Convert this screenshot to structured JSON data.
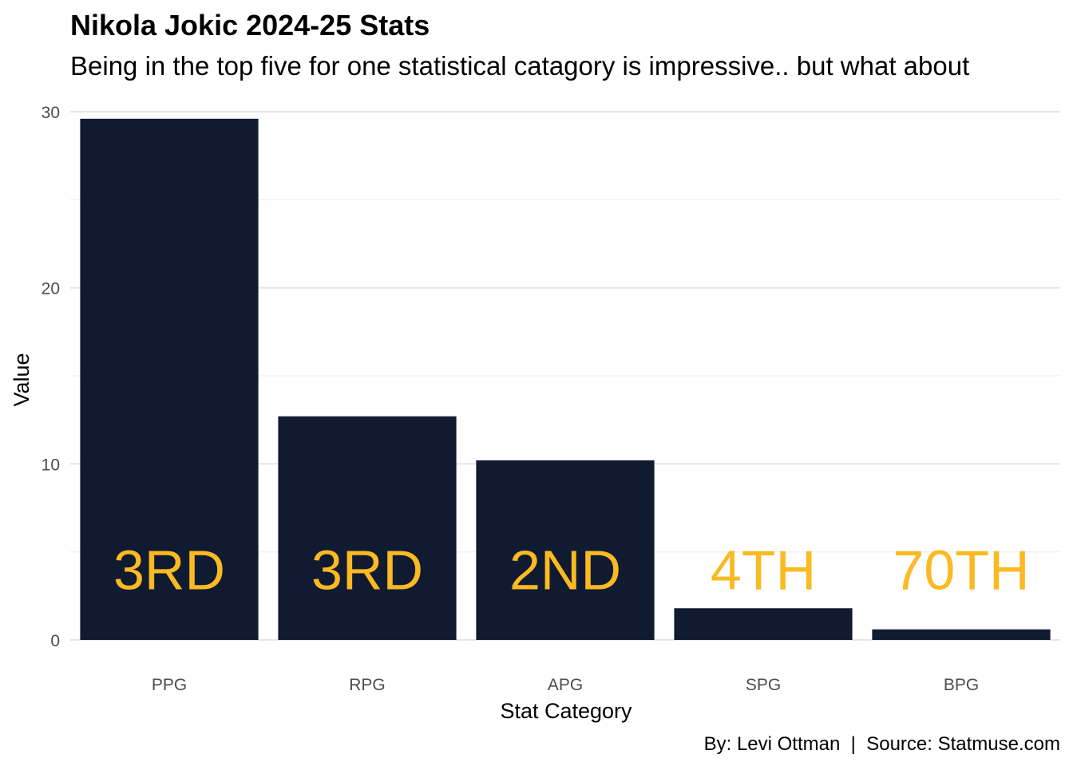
{
  "colors": {
    "bar": "#101b31",
    "rank_label": "#fbb922",
    "grid_major": "#e6e6e6",
    "grid_minor": "#f0f0f0",
    "background": "#ffffff"
  },
  "chart_data": {
    "type": "bar",
    "title": "Nikola Jokic 2024-25 Stats",
    "subtitle": "Being in the top five for one statistical catagory is impressive.. but what about",
    "xlabel": "Stat Category",
    "ylabel": "Value",
    "caption": "By: Levi Ottman  |  Source: Statmuse.com",
    "categories": [
      "PPG",
      "RPG",
      "APG",
      "SPG",
      "BPG"
    ],
    "values": [
      29.6,
      12.7,
      10.2,
      1.8,
      0.6
    ],
    "labels": [
      "3RD",
      "3RD",
      "2ND",
      "4TH",
      "70TH"
    ],
    "label_value": 4,
    "ylim": [
      0,
      30
    ],
    "yticks": [
      0,
      10,
      20,
      30
    ],
    "grid": true,
    "legend": "none"
  }
}
